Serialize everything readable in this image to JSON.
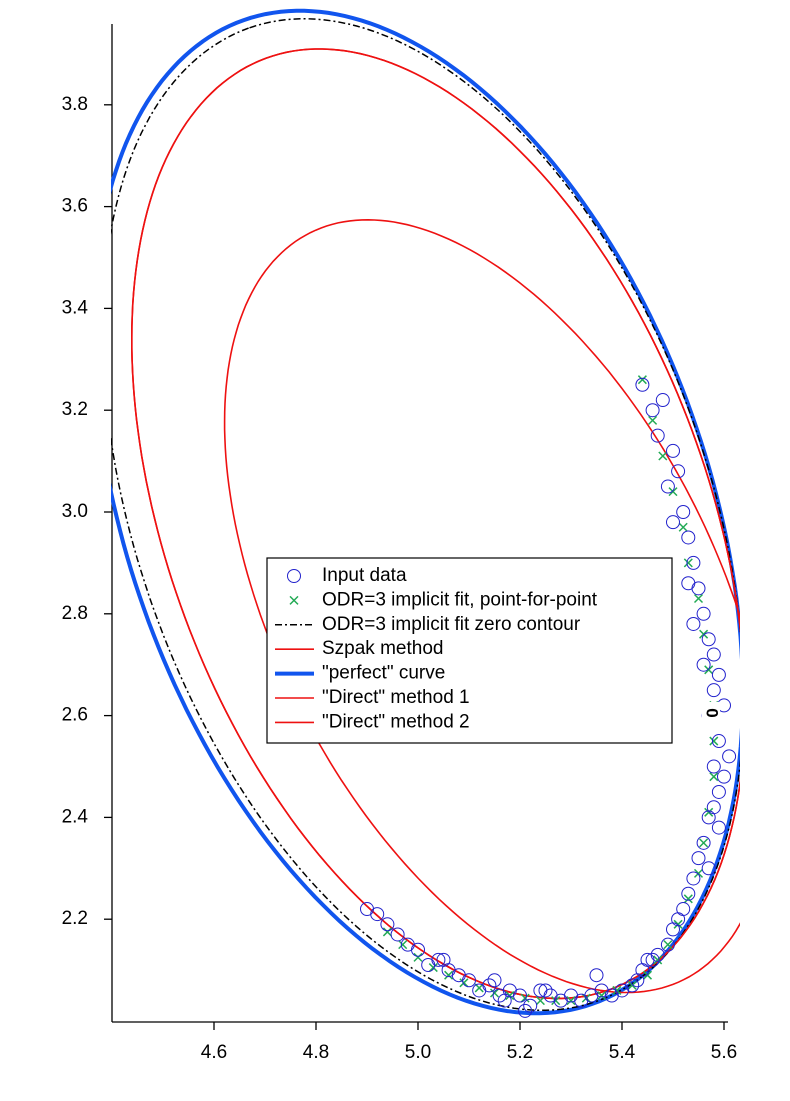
{
  "chart_data": {
    "type": "scatter",
    "title": "",
    "xlabel": "",
    "ylabel": "",
    "xlim": [
      4.4,
      5.6
    ],
    "ylim": [
      2.0,
      3.98
    ],
    "x_ticks": [
      4.6,
      4.8,
      5.0,
      5.2,
      5.4,
      5.6
    ],
    "x_tick_labels": [
      "4.6",
      "4.8",
      "5.0",
      "5.2",
      "5.4",
      "5.6"
    ],
    "y_ticks": [
      2.2,
      2.4,
      2.6,
      2.8,
      3.0,
      3.2,
      3.4,
      3.6,
      3.8
    ],
    "y_tick_labels": [
      "2.2",
      "2.4",
      "2.6",
      "2.8",
      "3.0",
      "3.2",
      "3.4",
      "3.6",
      "3.8"
    ],
    "grid": false,
    "legend_position": "center",
    "contour_label": "0",
    "colors": {
      "input": "#2222cc",
      "odr_points": "#22aa55",
      "zero_contour": "#000000",
      "szpak": "#ee1111",
      "perfect": "#1155ee",
      "direct1": "#ee1111",
      "direct2": "#ee1111"
    },
    "series": [
      {
        "name": "Input data",
        "kind": "scatter",
        "marker": "circle",
        "x": [
          5.44,
          5.46,
          5.48,
          5.47,
          5.5,
          5.49,
          5.51,
          5.52,
          5.5,
          5.53,
          5.54,
          5.53,
          5.55,
          5.56,
          5.54,
          5.57,
          5.58,
          5.56,
          5.59,
          5.58,
          5.6,
          5.57,
          5.59,
          5.61,
          5.58,
          5.6,
          5.59,
          5.58,
          5.57,
          5.59,
          5.56,
          5.55,
          5.57,
          5.54,
          5.53,
          5.52,
          5.51,
          5.5,
          5.49,
          5.47,
          5.46,
          5.44,
          5.43,
          5.42,
          5.4,
          5.38,
          5.36,
          5.34,
          5.32,
          5.3,
          5.28,
          5.26,
          5.24,
          5.22,
          5.2,
          5.18,
          5.16,
          5.14,
          5.12,
          5.1,
          5.08,
          5.06,
          5.04,
          5.02,
          5.0,
          4.98,
          4.96,
          4.94,
          4.92,
          4.9,
          5.05,
          5.15,
          5.25,
          5.35,
          5.45,
          5.21,
          5.17
        ],
        "y": [
          3.25,
          3.2,
          3.22,
          3.15,
          3.12,
          3.05,
          3.08,
          3.0,
          2.98,
          2.95,
          2.9,
          2.86,
          2.85,
          2.8,
          2.78,
          2.75,
          2.72,
          2.7,
          2.68,
          2.65,
          2.62,
          2.6,
          2.55,
          2.52,
          2.5,
          2.48,
          2.45,
          2.42,
          2.4,
          2.38,
          2.35,
          2.32,
          2.3,
          2.28,
          2.25,
          2.22,
          2.2,
          2.18,
          2.15,
          2.13,
          2.12,
          2.1,
          2.08,
          2.07,
          2.06,
          2.05,
          2.06,
          2.05,
          2.04,
          2.05,
          2.04,
          2.05,
          2.06,
          2.03,
          2.05,
          2.06,
          2.05,
          2.07,
          2.06,
          2.08,
          2.09,
          2.1,
          2.12,
          2.11,
          2.14,
          2.15,
          2.17,
          2.19,
          2.21,
          2.22,
          2.12,
          2.08,
          2.06,
          2.09,
          2.12,
          2.02,
          2.04
        ]
      },
      {
        "name": "ODR=3 implicit fit, point-for-point",
        "kind": "scatter",
        "marker": "x",
        "x": [
          5.44,
          5.46,
          5.48,
          5.5,
          5.52,
          5.53,
          5.55,
          5.56,
          5.57,
          5.58,
          5.58,
          5.58,
          5.57,
          5.56,
          5.55,
          5.53,
          5.51,
          5.49,
          5.47,
          5.45,
          5.42,
          5.39,
          5.36,
          5.33,
          5.3,
          5.27,
          5.24,
          5.21,
          5.18,
          5.15,
          5.12,
          5.09,
          5.06,
          5.03,
          5.0,
          4.97,
          4.94
        ],
        "y": [
          3.26,
          3.18,
          3.11,
          3.04,
          2.97,
          2.9,
          2.83,
          2.76,
          2.69,
          2.62,
          2.55,
          2.48,
          2.41,
          2.35,
          2.29,
          2.24,
          2.19,
          2.15,
          2.12,
          2.09,
          2.07,
          2.06,
          2.05,
          2.045,
          2.04,
          2.04,
          2.04,
          2.045,
          2.05,
          2.055,
          2.065,
          2.075,
          2.09,
          2.105,
          2.125,
          2.15,
          2.175
        ]
      },
      {
        "name": "ODR=3 implicit fit zero contour",
        "kind": "ellipse",
        "style": "dash-dot",
        "cx": 5.01,
        "cy": 2.995,
        "a": 1.015,
        "b": 0.56,
        "theta_deg": 109.7
      },
      {
        "name": "Szpak method",
        "kind": "ellipse",
        "cx": 5.04,
        "cy": 2.977,
        "a": 0.975,
        "b": 0.53,
        "theta_deg": 110.3
      },
      {
        "name": "\"perfect\" curve",
        "kind": "ellipse",
        "cx": 5.0,
        "cy": 3.0,
        "a": 1.025,
        "b": 0.57,
        "theta_deg": 109.5
      },
      {
        "name": "\"Direct\" method 1",
        "kind": "ellipse",
        "cx": 5.04,
        "cy": 2.977,
        "a": 0.975,
        "b": 0.53,
        "theta_deg": 110.3
      },
      {
        "name": "\"Direct\" method 2",
        "kind": "ellipse",
        "cx": 5.155,
        "cy": 2.815,
        "a": 0.82,
        "b": 0.435,
        "theta_deg": 116.5
      }
    ]
  }
}
